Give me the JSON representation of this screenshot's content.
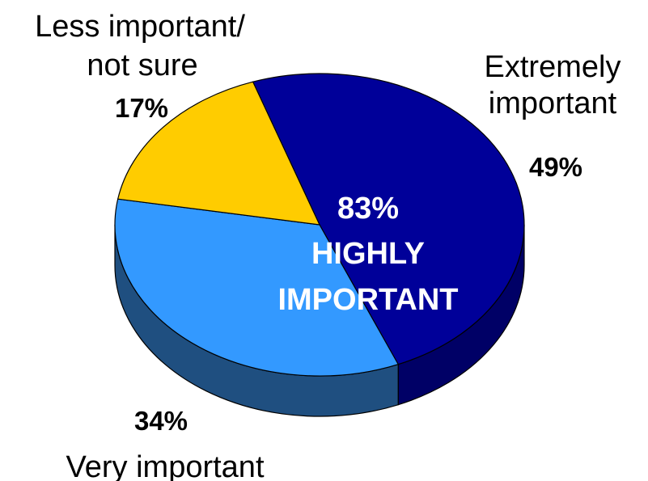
{
  "chart_data": {
    "type": "pie",
    "style": "3d",
    "slices": [
      {
        "label": "Extremely important",
        "lines": [
          "Extremely",
          "important"
        ],
        "value": 49,
        "value_label": "49%",
        "color": "#000099"
      },
      {
        "label": "Very important",
        "lines": [
          "Very important"
        ],
        "value": 34,
        "value_label": "34%",
        "color": "#3399ff"
      },
      {
        "label": "Less important/ not sure",
        "lines": [
          "Less important/",
          "not sure"
        ],
        "value": 17,
        "value_label": "17%",
        "color": "#ffcc00"
      }
    ],
    "side_colors": {
      "#000099": "#000066",
      "#3399ff": "#1f4f80",
      "#ffcc00": "#b38f00"
    },
    "center_annotation": {
      "line1": "83%",
      "line2": "HIGHLY",
      "line3": "IMPORTANT"
    }
  }
}
